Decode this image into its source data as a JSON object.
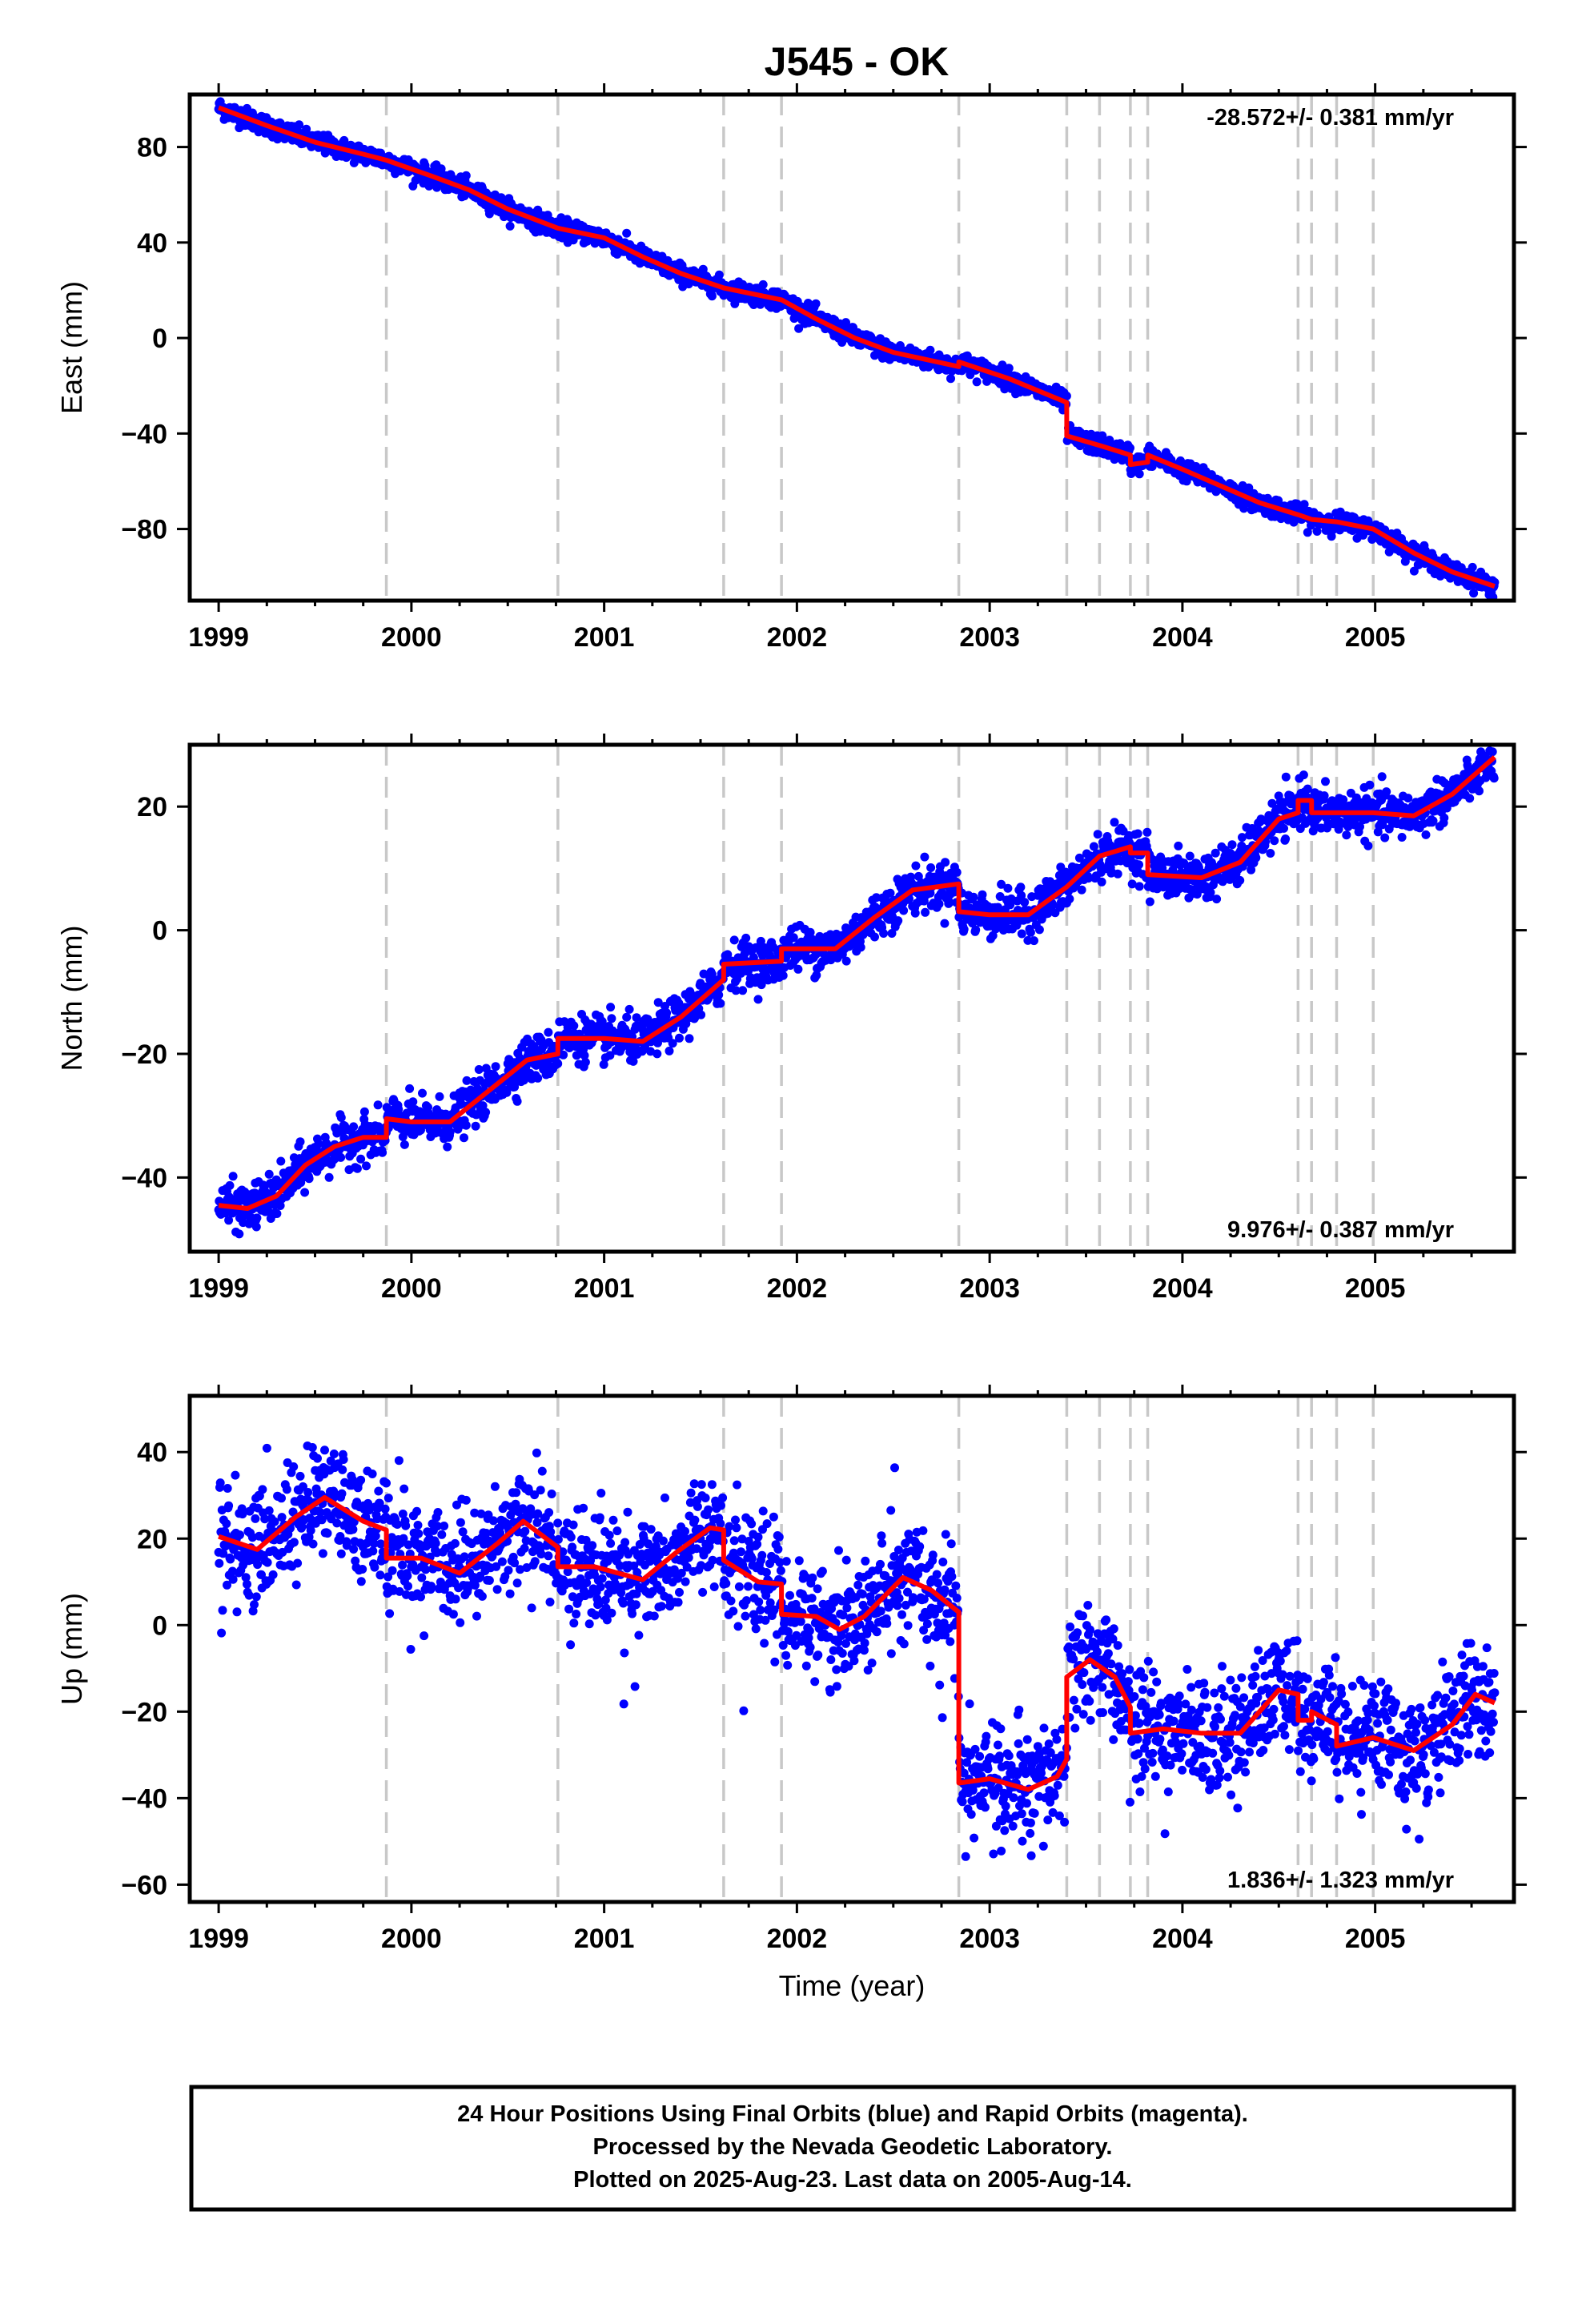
{
  "title": "J545 - OK",
  "footer": {
    "lines": [
      "24 Hour Positions Using Final Orbits (blue) and Rapid Orbits (magenta).",
      "Processed by the Nevada Geodetic Laboratory.",
      "Plotted on 2025-Aug-23. Last data on 2005-Aug-14."
    ]
  },
  "colors": {
    "points": "#0000ff",
    "model": "#ff0000",
    "event_lines": "#c8c8c8",
    "frame": "#000000"
  },
  "chart_data": [
    {
      "type": "scatter",
      "name": "east",
      "ylabel": "East (mm)",
      "xlabel": "",
      "xlim": [
        1998.85,
        2005.72
      ],
      "ylim": [
        -110,
        102
      ],
      "yticks": [
        80,
        40,
        0,
        -40,
        -80
      ],
      "xticks": [
        1999,
        2000,
        2001,
        2002,
        2003,
        2004,
        2005
      ],
      "rate_text": "-28.572+/- 0.381 mm/yr",
      "rate_position": "top-right",
      "event_lines_x": [
        1999.87,
        2000.76,
        2001.62,
        2001.92,
        2002.84,
        2003.4,
        2003.57,
        2003.73,
        2003.82,
        2004.6,
        2004.67,
        2004.8,
        2004.99
      ],
      "model_line": [
        [
          1999.0,
          96.5
        ],
        [
          1999.25,
          89
        ],
        [
          1999.5,
          82
        ],
        [
          1999.75,
          77
        ],
        [
          1999.87,
          74.5
        ],
        [
          2000.1,
          68
        ],
        [
          2000.3,
          62
        ],
        [
          2000.5,
          54
        ],
        [
          2000.76,
          46
        ],
        [
          2001.0,
          42
        ],
        [
          2001.2,
          34
        ],
        [
          2001.4,
          27
        ],
        [
          2001.62,
          21
        ],
        [
          2001.92,
          16
        ],
        [
          2002.1,
          8
        ],
        [
          2002.3,
          0
        ],
        [
          2002.5,
          -6
        ],
        [
          2002.84,
          -12
        ],
        [
          2002.84,
          -10
        ],
        [
          2003.1,
          -17
        ],
        [
          2003.4,
          -27
        ],
        [
          2003.4,
          -41
        ],
        [
          2003.57,
          -45
        ],
        [
          2003.73,
          -49
        ],
        [
          2003.73,
          -53
        ],
        [
          2003.82,
          -52
        ],
        [
          2003.82,
          -49
        ],
        [
          2004.0,
          -55
        ],
        [
          2004.2,
          -62
        ],
        [
          2004.4,
          -69
        ],
        [
          2004.6,
          -74
        ],
        [
          2004.67,
          -76
        ],
        [
          2004.8,
          -77
        ],
        [
          2004.99,
          -80
        ],
        [
          2005.2,
          -90
        ],
        [
          2005.4,
          -98
        ],
        [
          2005.62,
          -104
        ]
      ]
    },
    {
      "type": "scatter",
      "name": "north",
      "ylabel": "North (mm)",
      "xlabel": "",
      "xlim": [
        1998.85,
        2005.72
      ],
      "ylim": [
        -52,
        30
      ],
      "yticks": [
        20,
        0,
        -20,
        -40
      ],
      "xticks": [
        1999,
        2000,
        2001,
        2002,
        2003,
        2004,
        2005
      ],
      "rate_text": "9.976+/- 0.387 mm/yr",
      "rate_position": "bottom-right",
      "event_lines_x": [
        1999.87,
        2000.76,
        2001.62,
        2001.92,
        2002.84,
        2003.4,
        2003.57,
        2003.73,
        2003.82,
        2004.6,
        2004.67,
        2004.8,
        2004.99
      ],
      "model_line": [
        [
          1999.0,
          -44.5
        ],
        [
          1999.15,
          -45
        ],
        [
          1999.3,
          -43
        ],
        [
          1999.45,
          -38
        ],
        [
          1999.6,
          -35
        ],
        [
          1999.75,
          -33.5
        ],
        [
          1999.87,
          -33.5
        ],
        [
          1999.87,
          -30.5
        ],
        [
          2000.0,
          -31
        ],
        [
          2000.2,
          -31
        ],
        [
          2000.4,
          -26
        ],
        [
          2000.6,
          -21
        ],
        [
          2000.76,
          -20
        ],
        [
          2000.76,
          -17.5
        ],
        [
          2001.0,
          -17.5
        ],
        [
          2001.2,
          -18
        ],
        [
          2001.4,
          -14
        ],
        [
          2001.62,
          -8
        ],
        [
          2001.62,
          -5.5
        ],
        [
          2001.92,
          -5
        ],
        [
          2001.92,
          -3
        ],
        [
          2002.2,
          -3
        ],
        [
          2002.4,
          2
        ],
        [
          2002.6,
          6.5
        ],
        [
          2002.84,
          7.5
        ],
        [
          2002.84,
          3
        ],
        [
          2003.0,
          2.5
        ],
        [
          2003.2,
          2.5
        ],
        [
          2003.4,
          7
        ],
        [
          2003.57,
          12
        ],
        [
          2003.73,
          13.5
        ],
        [
          2003.73,
          12.5
        ],
        [
          2003.82,
          12.5
        ],
        [
          2003.82,
          9
        ],
        [
          2004.1,
          8.5
        ],
        [
          2004.3,
          11
        ],
        [
          2004.5,
          18
        ],
        [
          2004.6,
          19
        ],
        [
          2004.6,
          21
        ],
        [
          2004.67,
          21
        ],
        [
          2004.67,
          19
        ],
        [
          2004.99,
          19
        ],
        [
          2005.2,
          18.5
        ],
        [
          2005.4,
          22
        ],
        [
          2005.62,
          28
        ]
      ]
    },
    {
      "type": "scatter",
      "name": "up",
      "ylabel": "Up (mm)",
      "xlabel": "Time (year)",
      "xlim": [
        1998.85,
        2005.72
      ],
      "ylim": [
        -64,
        53
      ],
      "yticks": [
        40,
        20,
        0,
        -20,
        -40,
        -60
      ],
      "xticks": [
        1999,
        2000,
        2001,
        2002,
        2003,
        2004,
        2005
      ],
      "rate_text": "1.836+/- 1.323 mm/yr",
      "rate_position": "bottom-right",
      "event_lines_x": [
        1999.87,
        2000.76,
        2001.62,
        2001.92,
        2002.84,
        2003.4,
        2003.57,
        2003.73,
        2003.82,
        2004.6,
        2004.67,
        2004.8,
        2004.99
      ],
      "model_line": [
        [
          1999.0,
          20.5
        ],
        [
          1999.2,
          17.5
        ],
        [
          1999.4,
          25
        ],
        [
          1999.55,
          29.5
        ],
        [
          1999.75,
          24
        ],
        [
          1999.87,
          22
        ],
        [
          1999.87,
          15.5
        ],
        [
          2000.05,
          15.5
        ],
        [
          2000.25,
          12
        ],
        [
          2000.45,
          19
        ],
        [
          2000.58,
          24
        ],
        [
          2000.76,
          18
        ],
        [
          2000.76,
          13.5
        ],
        [
          2000.95,
          13.5
        ],
        [
          2001.2,
          10.5
        ],
        [
          2001.38,
          17
        ],
        [
          2001.55,
          22.5
        ],
        [
          2001.62,
          22
        ],
        [
          2001.62,
          15
        ],
        [
          2001.8,
          10
        ],
        [
          2001.92,
          9.5
        ],
        [
          2001.92,
          2.5
        ],
        [
          2002.1,
          2
        ],
        [
          2002.22,
          -1
        ],
        [
          2002.35,
          2
        ],
        [
          2002.55,
          11
        ],
        [
          2002.7,
          8
        ],
        [
          2002.84,
          3
        ],
        [
          2002.84,
          -36.5
        ],
        [
          2003.0,
          -35.5
        ],
        [
          2003.2,
          -38
        ],
        [
          2003.35,
          -35
        ],
        [
          2003.4,
          -31
        ],
        [
          2003.4,
          -12
        ],
        [
          2003.52,
          -8
        ],
        [
          2003.65,
          -12
        ],
        [
          2003.73,
          -19
        ],
        [
          2003.73,
          -25
        ],
        [
          2003.9,
          -24
        ],
        [
          2004.1,
          -25
        ],
        [
          2004.3,
          -25
        ],
        [
          2004.5,
          -15
        ],
        [
          2004.6,
          -16
        ],
        [
          2004.6,
          -22
        ],
        [
          2004.67,
          -22
        ],
        [
          2004.67,
          -20
        ],
        [
          2004.8,
          -23
        ],
        [
          2004.8,
          -28
        ],
        [
          2004.99,
          -26
        ],
        [
          2005.2,
          -29
        ],
        [
          2005.4,
          -23
        ],
        [
          2005.52,
          -16
        ],
        [
          2005.62,
          -18
        ]
      ]
    }
  ]
}
